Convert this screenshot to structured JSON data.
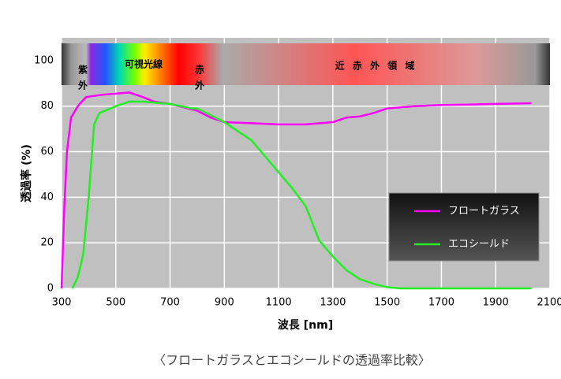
{
  "chart_data": {
    "type": "line",
    "caption": "〈フロートガラスとエコシールドの透過率比較〉",
    "xlabel": "波長 [nm]",
    "ylabel": "透過率 (%)",
    "xlim": [
      300,
      2100
    ],
    "ylim": [
      0,
      110
    ],
    "xticks": [
      300,
      500,
      700,
      900,
      1100,
      1300,
      1500,
      1700,
      1900,
      2100
    ],
    "yticks": [
      0,
      20,
      40,
      60,
      80,
      100
    ],
    "grid": true,
    "legend": "lower right",
    "annotations": [
      "紫外",
      "可視光線",
      "赤外",
      "近 赤 外 領 域"
    ],
    "series": [
      {
        "name": "フロートガラス",
        "color": "#ff00ff",
        "x": [
          300,
          310,
          320,
          335,
          360,
          390,
          450,
          550,
          600,
          640,
          700,
          800,
          850,
          900,
          1000,
          1100,
          1200,
          1300,
          1350,
          1400,
          1450,
          1500,
          1600,
          1700,
          1800,
          1900,
          2000,
          2030
        ],
        "values": [
          0,
          35,
          60,
          75,
          80,
          84,
          85,
          86,
          84,
          82,
          81,
          78,
          75,
          73,
          72.5,
          72,
          72,
          73,
          75,
          75.5,
          77,
          79,
          80,
          80.5,
          80.7,
          81,
          81.2,
          81.3
        ]
      },
      {
        "name": "エコシールド",
        "color": "#22ee22",
        "x": [
          340,
          360,
          380,
          400,
          420,
          440,
          500,
          550,
          600,
          700,
          780,
          800,
          850,
          900,
          950,
          1000,
          1050,
          1100,
          1150,
          1200,
          1250,
          1300,
          1350,
          1400,
          1450,
          1500,
          1550,
          1600,
          1800,
          2030
        ],
        "values": [
          0,
          5,
          15,
          40,
          72,
          77,
          80,
          82,
          82,
          81,
          79,
          79,
          76,
          73,
          69,
          65,
          58,
          51,
          44,
          36,
          21,
          14,
          8,
          4,
          2,
          0.5,
          0,
          0,
          0,
          0
        ]
      }
    ]
  }
}
